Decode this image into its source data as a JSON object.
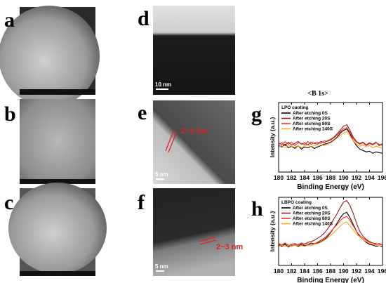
{
  "panel_labels": [
    "a",
    "b",
    "c",
    "d",
    "e",
    "f",
    "g",
    "h"
  ],
  "scale_bars": [
    "10 nm",
    "5 nm",
    "5 nm"
  ],
  "annotations": [
    "2~3 nm",
    "2~3 nm"
  ],
  "figure_heading": "<B 1s>",
  "chart_data": [
    {
      "type": "line",
      "legend_title": "LPO caoting",
      "xlabel": "Binding Energy (eV)",
      "ylabel": "Intensity (a.u.)",
      "x": [
        180,
        180.5,
        181,
        181.5,
        182,
        182.5,
        183,
        183.5,
        184,
        184.5,
        185,
        185.5,
        186,
        186.5,
        187,
        187.5,
        188,
        188.5,
        189,
        189.5,
        190,
        190.5,
        191,
        191.5,
        192,
        192.5,
        193,
        193.5,
        194,
        194.5,
        195,
        195.5,
        196
      ],
      "xlim": [
        180,
        196
      ],
      "xticks": [
        180,
        182,
        184,
        186,
        188,
        190,
        192,
        194,
        196
      ],
      "ylim": [
        0,
        100
      ],
      "legend": "upper left",
      "series": [
        {
          "name": "After etching 0S",
          "color": "#000000",
          "values": [
            38,
            36,
            40,
            35,
            37,
            34,
            38,
            33,
            36,
            35,
            37,
            34,
            36,
            38,
            40,
            41,
            43,
            46,
            50,
            56,
            60,
            62,
            55,
            45,
            38,
            33,
            31,
            29,
            30,
            27,
            29,
            28,
            27
          ]
        },
        {
          "name": "After etching 20S",
          "color": "#8b1a1a",
          "values": [
            40,
            42,
            38,
            43,
            39,
            41,
            44,
            40,
            42,
            39,
            43,
            41,
            40,
            44,
            42,
            45,
            47,
            50,
            55,
            60,
            66,
            68,
            60,
            50,
            44,
            41,
            43,
            39,
            42,
            40,
            43,
            38,
            41
          ]
        },
        {
          "name": "After etching 80S",
          "color": "#ff2a2a",
          "values": [
            42,
            39,
            44,
            40,
            43,
            38,
            42,
            41,
            39,
            44,
            40,
            42,
            43,
            41,
            45,
            44,
            46,
            49,
            53,
            58,
            62,
            64,
            57,
            48,
            43,
            40,
            42,
            38,
            41,
            39,
            42,
            40,
            38
          ]
        },
        {
          "name": "After etching 140S",
          "color": "#ffa726",
          "values": [
            36,
            38,
            35,
            39,
            37,
            36,
            38,
            35,
            37,
            39,
            36,
            38,
            37,
            39,
            38,
            40,
            42,
            45,
            49,
            53,
            56,
            58,
            52,
            45,
            40,
            37,
            39,
            36,
            38,
            35,
            37,
            36,
            34
          ]
        }
      ]
    },
    {
      "type": "line",
      "legend_title": "LBPO coating",
      "xlabel": "Binding Energy (eV)",
      "ylabel": "Intensity (a.u.)",
      "x": [
        180,
        180.5,
        181,
        181.5,
        182,
        182.5,
        183,
        183.5,
        184,
        184.5,
        185,
        185.5,
        186,
        186.5,
        187,
        187.5,
        188,
        188.5,
        189,
        189.5,
        190,
        190.5,
        191,
        191.5,
        192,
        192.5,
        193,
        193.5,
        194,
        194.5,
        195,
        195.5,
        196
      ],
      "xlim": [
        180,
        196
      ],
      "xticks": [
        180,
        182,
        184,
        186,
        188,
        190,
        192,
        194,
        196
      ],
      "ylim": [
        0,
        100
      ],
      "legend": "upper left",
      "series": [
        {
          "name": "After etching 0S",
          "color": "#000000",
          "values": [
            30,
            28,
            31,
            27,
            29,
            30,
            28,
            31,
            29,
            30,
            32,
            31,
            33,
            35,
            38,
            42,
            48,
            55,
            62,
            70,
            76,
            78,
            70,
            60,
            50,
            42,
            38,
            34,
            31,
            30,
            28,
            29,
            27
          ]
        },
        {
          "name": "After etching 20S",
          "color": "#8b1a1a",
          "values": [
            32,
            30,
            33,
            29,
            31,
            32,
            30,
            33,
            31,
            34,
            35,
            37,
            40,
            43,
            47,
            53,
            60,
            68,
            76,
            85,
            93,
            95,
            88,
            76,
            62,
            50,
            43,
            38,
            35,
            33,
            31,
            32,
            30
          ]
        },
        {
          "name": "After etching 80S",
          "color": "#ff2a2a",
          "values": [
            31,
            29,
            32,
            30,
            28,
            31,
            30,
            29,
            32,
            31,
            33,
            32,
            34,
            37,
            40,
            44,
            49,
            55,
            60,
            66,
            70,
            72,
            66,
            58,
            50,
            44,
            40,
            37,
            34,
            33,
            32,
            31,
            30
          ]
        },
        {
          "name": "After etching 140S",
          "color": "#ffa726",
          "values": [
            28,
            30,
            27,
            29,
            28,
            30,
            27,
            29,
            28,
            30,
            29,
            31,
            32,
            34,
            37,
            40,
            44,
            48,
            53,
            58,
            62,
            64,
            58,
            52,
            46,
            42,
            38,
            35,
            33,
            31,
            30,
            29,
            28
          ]
        }
      ]
    }
  ]
}
